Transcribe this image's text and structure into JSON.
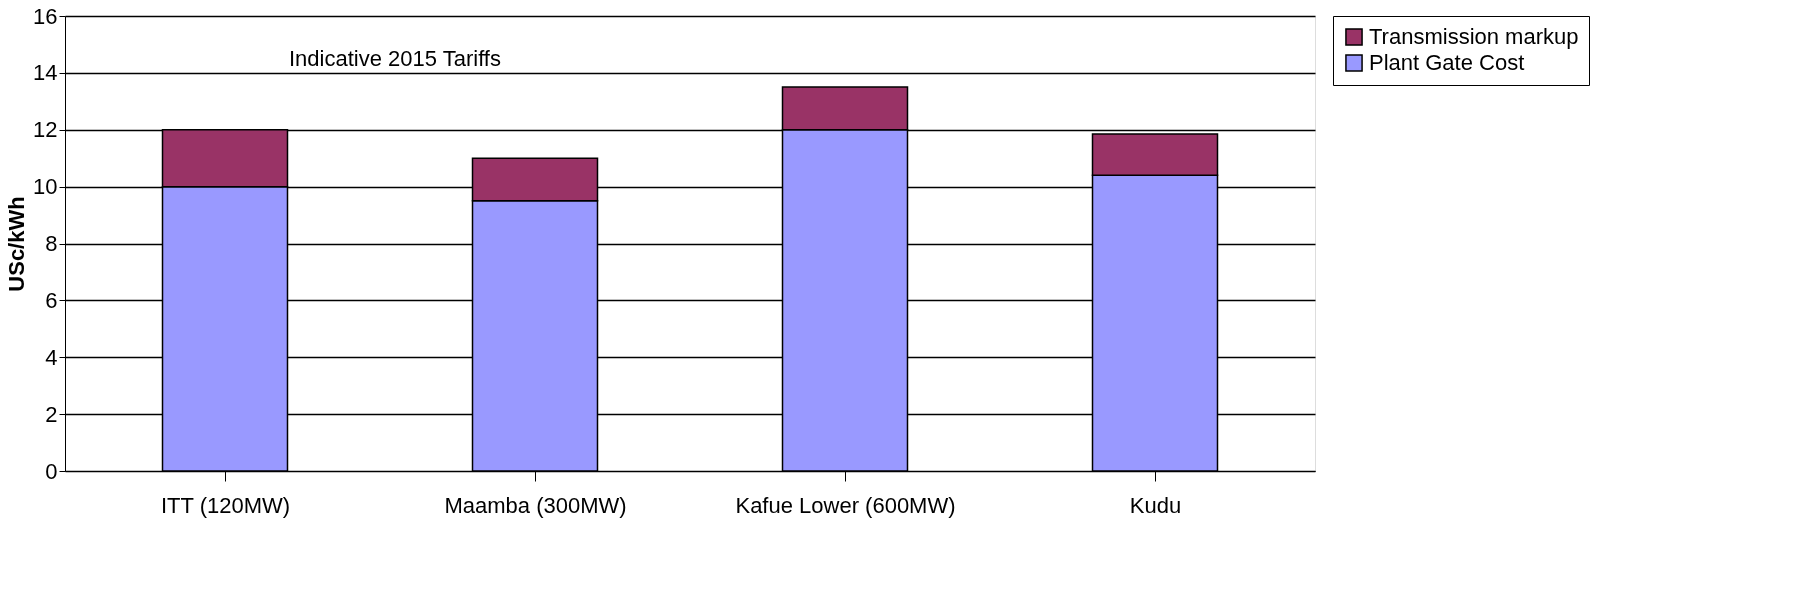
{
  "chart_data": {
    "type": "bar",
    "stacked": true,
    "ylabel": "USc/kWh",
    "annotations": [
      "Indicative 2015 Tariffs"
    ],
    "categories": [
      "ITT (120MW)",
      "Maamba (300MW)",
      "Kafue Lower (600MW)",
      "Kudu"
    ],
    "series": [
      {
        "name": "Plant Gate Cost",
        "color": "#9999ff",
        "values": [
          10,
          9.5,
          12,
          10.4
        ]
      },
      {
        "name": "Transmission markup",
        "color": "#993366",
        "values": [
          2,
          1.5,
          1.5,
          1.45
        ]
      }
    ],
    "ylim": [
      0,
      16
    ],
    "yticks": [
      0,
      2,
      4,
      6,
      8,
      10,
      12,
      14,
      16
    ],
    "grid": "y",
    "legend": "right"
  }
}
